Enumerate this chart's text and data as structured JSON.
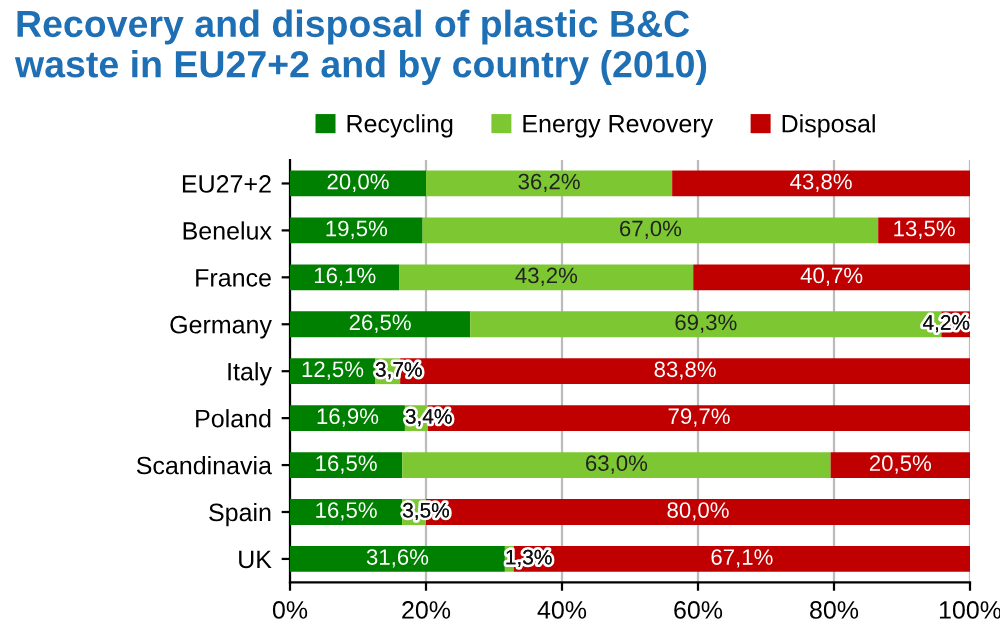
{
  "chart_data": {
    "type": "bar",
    "orientation": "horizontal",
    "stacked": true,
    "title": "Recovery and disposal of plastic B&C\nwaste in EU27+2 and by country (2010)",
    "categories": [
      "EU27+2",
      "Benelux",
      "France",
      "Germany",
      "Italy",
      "Poland",
      "Scandinavia",
      "Spain",
      "UK"
    ],
    "series": [
      {
        "name": "Recycling",
        "color": "#008000",
        "values": [
          20.0,
          19.5,
          16.1,
          26.5,
          12.5,
          16.9,
          16.5,
          16.5,
          31.6
        ],
        "value_labels": [
          "20,0%",
          "19,5%",
          "16,1%",
          "26,5%",
          "12,5%",
          "16,9%",
          "16,5%",
          "16,5%",
          "31,6%"
        ]
      },
      {
        "name": "Energy Revovery",
        "color": "#7dc832",
        "values": [
          36.2,
          67.0,
          43.2,
          69.3,
          3.7,
          3.4,
          63.0,
          3.5,
          1.3
        ],
        "value_labels": [
          "36,2%",
          "67,0%",
          "43,2%",
          "69,3%",
          "3,7%",
          "3,4%",
          "63,0%",
          "3,5%",
          "1,3%"
        ]
      },
      {
        "name": "Disposal",
        "color": "#c00000",
        "values": [
          43.8,
          13.5,
          40.7,
          4.2,
          83.8,
          79.7,
          20.5,
          80.0,
          67.1
        ],
        "value_labels": [
          "43,8%",
          "13,5%",
          "40,7%",
          "4,2%",
          "83,8%",
          "79,7%",
          "20,5%",
          "80,0%",
          "67,1%"
        ]
      }
    ],
    "xlim": [
      0,
      100
    ],
    "xticks": [
      {
        "value": 0,
        "label": "0%"
      },
      {
        "value": 20,
        "label": "20%"
      },
      {
        "value": 40,
        "label": "40%"
      },
      {
        "value": 60,
        "label": "60%"
      },
      {
        "value": 80,
        "label": "80%"
      },
      {
        "value": 100,
        "label": "100%"
      }
    ],
    "grid": "x",
    "legend": "top"
  }
}
